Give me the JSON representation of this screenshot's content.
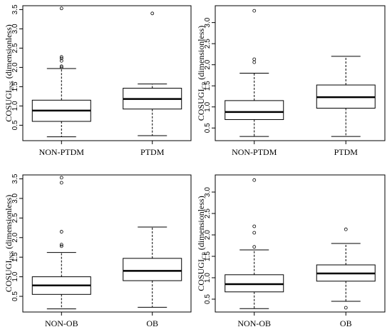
{
  "chart_data": [
    {
      "type": "boxplot",
      "ylabel": {
        "main": "COSUGI",
        "sub": "INS",
        "unit": " (dimensionless)"
      },
      "ylim": [
        0.1,
        3.6
      ],
      "yticks": [
        0.5,
        1.0,
        1.5,
        2.0,
        2.5,
        3.0,
        3.5
      ],
      "ytick_labels": [
        "0.5",
        "1.0",
        "1.5",
        "2.0",
        "2.5",
        "3.0",
        "3.5"
      ],
      "categories": [
        "NON-PTDM",
        "PTDM"
      ],
      "boxes": [
        {
          "whisker_low": 0.2,
          "q1": 0.6,
          "median": 0.88,
          "q3": 1.15,
          "whisker_high": 1.97,
          "outliers": [
            2.0,
            2.03,
            2.17,
            2.23,
            2.27,
            3.53
          ]
        },
        {
          "whisker_low": 0.23,
          "q1": 0.92,
          "median": 1.18,
          "q3": 1.46,
          "whisker_high": 1.57,
          "outliers": [
            3.4
          ]
        }
      ]
    },
    {
      "type": "boxplot",
      "ylabel": {
        "main": "COSUGI",
        "sub": "CP",
        "unit": " (dimensionless)"
      },
      "ylim": [
        0.2,
        3.4
      ],
      "yticks": [
        0.5,
        1.0,
        1.5,
        2.0,
        2.5,
        3.0
      ],
      "ytick_labels": [
        "0.5",
        "1.0",
        "1.5",
        "2.0",
        "2.5",
        "3.0"
      ],
      "categories": [
        "NON-PTDM",
        "PTDM"
      ],
      "boxes": [
        {
          "whisker_low": 0.3,
          "q1": 0.7,
          "median": 0.88,
          "q3": 1.15,
          "whisker_high": 1.8,
          "outliers": [
            2.06,
            2.13,
            3.28
          ]
        },
        {
          "whisker_low": 0.3,
          "q1": 0.97,
          "median": 1.23,
          "q3": 1.52,
          "whisker_high": 2.2,
          "outliers": []
        }
      ]
    },
    {
      "type": "boxplot",
      "ylabel": {
        "main": "COSUGI",
        "sub": "INS",
        "unit": " (dimensionless)"
      },
      "ylim": [
        0.1,
        3.6
      ],
      "yticks": [
        0.5,
        1.0,
        1.5,
        2.0,
        2.5,
        3.0,
        3.5
      ],
      "ytick_labels": [
        "0.5",
        "1.0",
        "1.5",
        "2.0",
        "2.5",
        "3.0",
        "3.5"
      ],
      "categories": [
        "NON-OB",
        "OB"
      ],
      "boxes": [
        {
          "whisker_low": 0.18,
          "q1": 0.55,
          "median": 0.78,
          "q3": 1.0,
          "whisker_high": 1.62,
          "outliers": [
            1.78,
            1.82,
            2.15,
            3.4,
            3.53
          ]
        },
        {
          "whisker_low": 0.22,
          "q1": 0.9,
          "median": 1.15,
          "q3": 1.47,
          "whisker_high": 2.27,
          "outliers": []
        }
      ]
    },
    {
      "type": "boxplot",
      "ylabel": {
        "main": "COSUGI",
        "sub": "CP",
        "unit": " (dimensionless)"
      },
      "ylim": [
        0.2,
        3.4
      ],
      "yticks": [
        0.5,
        1.0,
        1.5,
        2.0,
        2.5,
        3.0
      ],
      "ytick_labels": [
        "0.5",
        "1.0",
        "1.5",
        "2.0",
        "2.5",
        "3.0"
      ],
      "categories": [
        "NON-OB",
        "OB"
      ],
      "boxes": [
        {
          "whisker_low": 0.28,
          "q1": 0.67,
          "median": 0.85,
          "q3": 1.07,
          "whisker_high": 1.65,
          "outliers": [
            1.72,
            2.05,
            2.2,
            3.28
          ]
        },
        {
          "whisker_low": 0.45,
          "q1": 0.92,
          "median": 1.1,
          "q3": 1.3,
          "whisker_high": 1.8,
          "outliers": [
            0.3,
            2.13
          ]
        }
      ]
    }
  ]
}
